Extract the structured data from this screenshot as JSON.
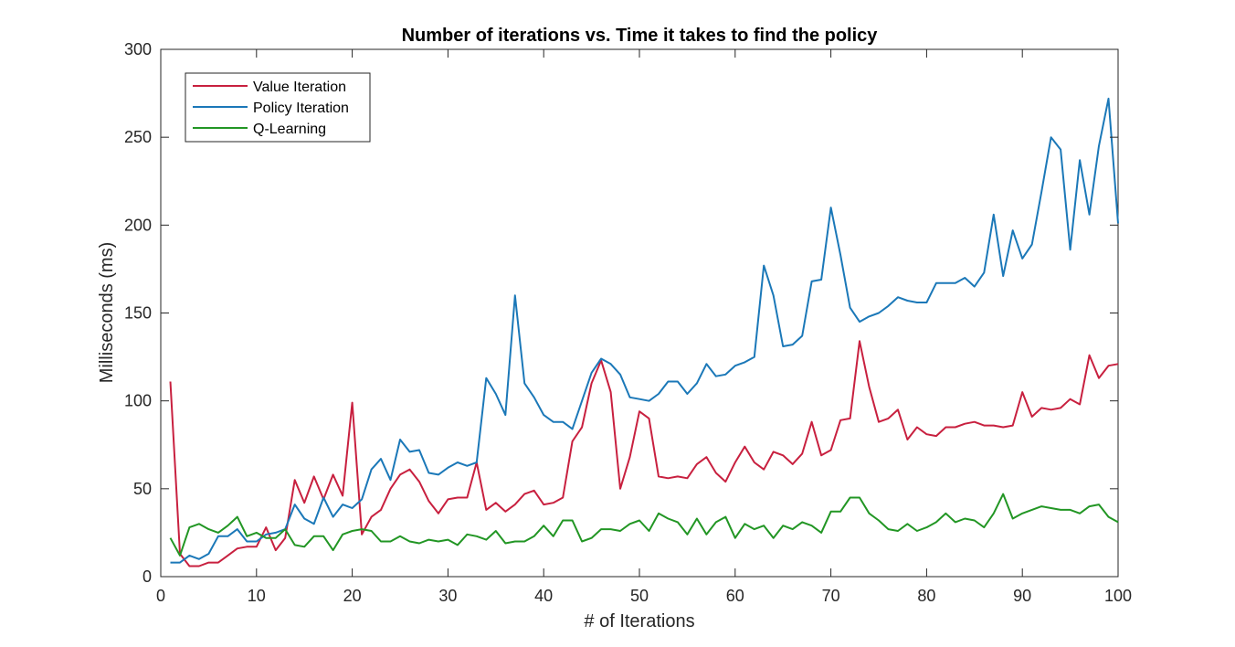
{
  "chart_data": {
    "type": "line",
    "title": "Number of iterations vs. Time it takes to find the policy",
    "xlabel": "# of Iterations",
    "ylabel": "Milliseconds (ms)",
    "xlim": [
      0,
      100
    ],
    "ylim": [
      0,
      300
    ],
    "xticks": [
      0,
      10,
      20,
      30,
      40,
      50,
      60,
      70,
      80,
      90,
      100
    ],
    "yticks": [
      0,
      50,
      100,
      150,
      200,
      250,
      300
    ],
    "grid": false,
    "legend_position": "top-left",
    "x": [
      1,
      2,
      3,
      4,
      5,
      6,
      7,
      8,
      9,
      10,
      11,
      12,
      13,
      14,
      15,
      16,
      17,
      18,
      19,
      20,
      21,
      22,
      23,
      24,
      25,
      26,
      27,
      28,
      29,
      30,
      31,
      32,
      33,
      34,
      35,
      36,
      37,
      38,
      39,
      40,
      41,
      42,
      43,
      44,
      45,
      46,
      47,
      48,
      49,
      50,
      51,
      52,
      53,
      54,
      55,
      56,
      57,
      58,
      59,
      60,
      61,
      62,
      63,
      64,
      65,
      66,
      67,
      68,
      69,
      70,
      71,
      72,
      73,
      74,
      75,
      76,
      77,
      78,
      79,
      80,
      81,
      82,
      83,
      84,
      85,
      86,
      87,
      88,
      89,
      90,
      91,
      92,
      93,
      94,
      95,
      96,
      97,
      98,
      99,
      100
    ],
    "series": [
      {
        "name": "Value Iteration",
        "color": "#c8203f",
        "values": [
          111,
          13,
          6,
          6,
          8,
          8,
          12,
          16,
          17,
          17,
          28,
          15,
          22,
          55,
          42,
          57,
          44,
          58,
          46,
          99,
          24,
          34,
          38,
          50,
          58,
          61,
          54,
          43,
          36,
          44,
          45,
          45,
          65,
          38,
          42,
          37,
          41,
          47,
          49,
          41,
          42,
          45,
          77,
          85,
          110,
          123,
          105,
          50,
          68,
          94,
          90,
          57,
          56,
          57,
          56,
          64,
          68,
          59,
          54,
          65,
          74,
          65,
          61,
          71,
          69,
          64,
          70,
          88,
          69,
          72,
          89,
          90,
          134,
          108,
          88,
          90,
          95,
          78,
          85,
          81,
          80,
          85,
          85,
          87,
          88,
          86,
          86,
          85,
          86,
          105,
          91,
          96,
          95,
          96,
          101,
          98,
          126,
          113,
          120,
          121
        ]
      },
      {
        "name": "Policy Iteration",
        "color": "#1b78b8",
        "values": [
          8,
          8,
          12,
          10,
          13,
          23,
          23,
          27,
          20,
          20,
          24,
          25,
          27,
          41,
          33,
          30,
          45,
          34,
          41,
          39,
          44,
          61,
          67,
          55,
          78,
          71,
          72,
          59,
          58,
          62,
          65,
          63,
          65,
          113,
          104,
          92,
          160,
          110,
          102,
          92,
          88,
          88,
          84,
          100,
          116,
          124,
          121,
          115,
          102,
          101,
          100,
          104,
          111,
          111,
          104,
          110,
          121,
          114,
          115,
          120,
          122,
          125,
          177,
          160,
          131,
          132,
          137,
          168,
          169,
          210,
          183,
          153,
          145,
          148,
          150,
          154,
          159,
          157,
          156,
          156,
          167,
          167,
          167,
          170,
          165,
          173,
          206,
          171,
          197,
          181,
          189,
          219,
          250,
          243,
          186,
          237,
          206,
          245,
          272,
          201
        ]
      },
      {
        "name": "Q-Learning",
        "color": "#229624",
        "values": [
          22,
          12,
          28,
          30,
          27,
          25,
          29,
          34,
          23,
          25,
          22,
          22,
          27,
          18,
          17,
          23,
          23,
          15,
          24,
          26,
          27,
          26,
          20,
          20,
          23,
          20,
          19,
          21,
          20,
          21,
          18,
          24,
          23,
          21,
          26,
          19,
          20,
          20,
          23,
          29,
          23,
          32,
          32,
          20,
          22,
          27,
          27,
          26,
          30,
          32,
          26,
          36,
          33,
          31,
          24,
          33,
          24,
          31,
          34,
          22,
          30,
          27,
          29,
          22,
          29,
          27,
          31,
          29,
          25,
          37,
          37,
          45,
          45,
          36,
          32,
          27,
          26,
          30,
          26,
          28,
          31,
          36,
          31,
          33,
          32,
          28,
          36,
          47,
          33,
          36,
          38,
          40,
          39,
          38,
          38,
          36,
          40,
          41,
          34,
          31
        ]
      }
    ]
  }
}
